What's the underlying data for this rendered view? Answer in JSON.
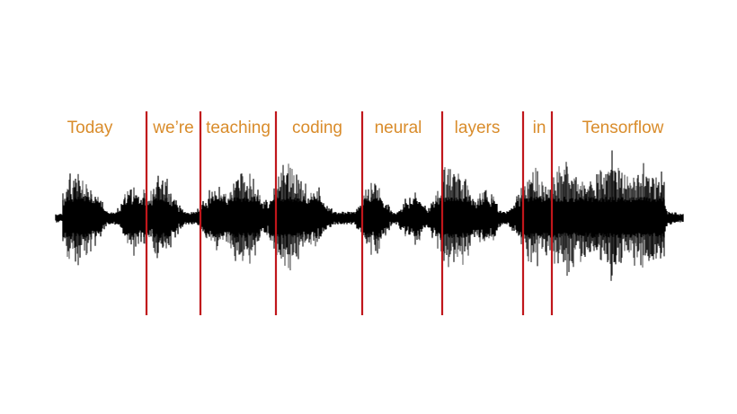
{
  "words": [
    "Today",
    "we’re",
    "teaching",
    "coding",
    "neural",
    "layers",
    "in",
    "Tensorflow"
  ],
  "colors": {
    "word_text": "#d98c2b",
    "boundary_line": "#c0161b",
    "waveform": "#000000",
    "background": "#ffffff"
  }
}
